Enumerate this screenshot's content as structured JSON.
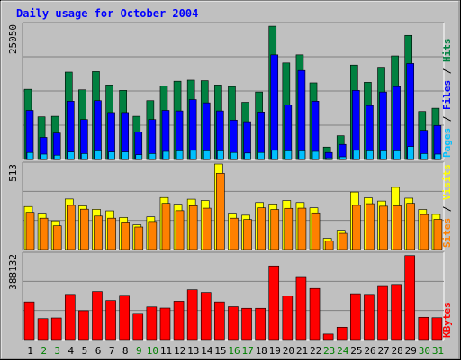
{
  "chart_data": {
    "type": "bar",
    "title": "Daily usage for October 2004",
    "categories": [
      "1",
      "2",
      "3",
      "4",
      "5",
      "6",
      "7",
      "8",
      "9",
      "10",
      "11",
      "12",
      "13",
      "14",
      "15",
      "16",
      "17",
      "18",
      "19",
      "20",
      "21",
      "22",
      "23",
      "24",
      "25",
      "26",
      "27",
      "28",
      "29",
      "30",
      "31"
    ],
    "weekend_days": [
      "2",
      "3",
      "9",
      "10",
      "16",
      "17",
      "23",
      "24",
      "30",
      "31"
    ],
    "colors": {
      "title": "#0000ff",
      "hits": "#008040",
      "files": "#0000ff",
      "pages": "#00c0ff",
      "visits": "#ffff00",
      "sites": "#ff8000",
      "kbytes": "#ff0000",
      "weekday_label": "#000000",
      "weekend_label": "#008000",
      "plot_background": "#c0c0c0"
    },
    "panels": [
      {
        "id": "hits-files-pages",
        "max_label": "25050",
        "ylim": [
          0,
          25050
        ],
        "right_labels": [
          {
            "text": "Pages",
            "color": "#00c0ff"
          },
          {
            "text": " / ",
            "color": "#000000"
          },
          {
            "text": "Files",
            "color": "#0000ff"
          },
          {
            "text": " / ",
            "color": "#000000"
          },
          {
            "text": "Hits",
            "color": "#008040"
          }
        ],
        "series": [
          {
            "name": "Hits",
            "color": "#008040",
            "values": [
              13000,
              7900,
              8000,
              16200,
              12900,
              16300,
              13800,
              12800,
              8000,
              10900,
              13600,
              14500,
              14700,
              14600,
              13800,
              13500,
              10600,
              12500,
              24700,
              17900,
              19400,
              14200,
              2300,
              4400,
              17500,
              14300,
              17100,
              19200,
              23000,
              8900,
              9500
            ]
          },
          {
            "name": "Files",
            "color": "#0000ff",
            "values": [
              9100,
              4100,
              4900,
              10800,
              7400,
              10900,
              8700,
              8700,
              5100,
              7400,
              9100,
              9000,
              11100,
              10500,
              9000,
              7300,
              7000,
              8800,
              19400,
              10100,
              16500,
              10800,
              1300,
              2800,
              12800,
              10000,
              12500,
              13500,
              17800,
              5400,
              6300
            ]
          },
          {
            "name": "Pages",
            "color": "#00c0ff",
            "values": [
              1300,
              1000,
              800,
              1400,
              1100,
              1600,
              1400,
              1400,
              900,
              1100,
              1500,
              1600,
              1700,
              1600,
              1600,
              1300,
              1200,
              1300,
              1700,
              1600,
              1600,
              1500,
              300,
              500,
              1700,
              1600,
              1600,
              1600,
              2400,
              1100,
              1000
            ]
          }
        ]
      },
      {
        "id": "visits-sites",
        "max_label": "513",
        "ylim": [
          0,
          513
        ],
        "right_labels": [
          {
            "text": "Sites",
            "color": "#ff8000"
          },
          {
            "text": " / ",
            "color": "#000000"
          },
          {
            "text": "Visits",
            "color": "#ffff00"
          }
        ],
        "series": [
          {
            "name": "Visits",
            "color": "#ffff00",
            "values": [
              258,
              218,
              172,
              303,
              262,
              241,
              232,
              192,
              148,
              196,
              312,
              272,
              302,
              294,
              513,
              218,
              206,
              282,
              273,
              294,
              282,
              250,
              67,
              115,
              345,
              310,
              291,
              373,
              308,
              240,
              211
            ]
          },
          {
            "name": "Sites",
            "color": "#ff8000",
            "values": [
              223,
              188,
              142,
              265,
              242,
              201,
              188,
              165,
              135,
              168,
              277,
              233,
              263,
              248,
              457,
              188,
              180,
              250,
              240,
              247,
              248,
              220,
              50,
              97,
              265,
              275,
              260,
              262,
              277,
              210,
              181
            ]
          }
        ]
      },
      {
        "id": "kbytes",
        "max_label": "388132",
        "ylim": [
          0,
          388132
        ],
        "right_labels": [
          {
            "text": "KBytes",
            "color": "#ff0000"
          }
        ],
        "series": [
          {
            "name": "KBytes",
            "color": "#ff0000",
            "values": [
              171000,
              95000,
              98000,
              205000,
              131000,
              218000,
              177000,
              201000,
              119000,
              148000,
              143000,
              174000,
              226000,
              214000,
              171000,
              149000,
              142000,
              142000,
              334000,
              198000,
              286000,
              232000,
              25000,
              56000,
              208000,
              205000,
              245000,
              250000,
              381000,
              101000,
              99000
            ]
          }
        ]
      }
    ]
  }
}
